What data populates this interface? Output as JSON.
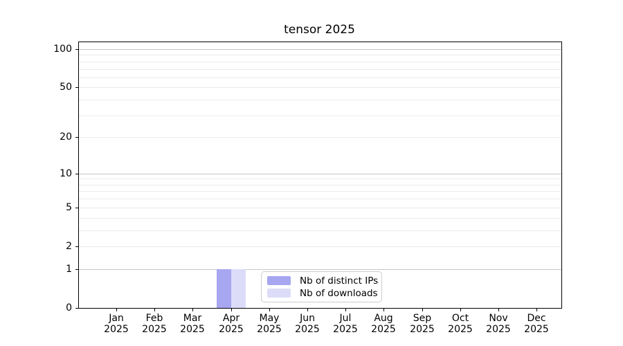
{
  "chart_data": {
    "type": "bar",
    "title": "tensor 2025",
    "categories": [
      {
        "month": "Jan",
        "year": "2025"
      },
      {
        "month": "Feb",
        "year": "2025"
      },
      {
        "month": "Mar",
        "year": "2025"
      },
      {
        "month": "Apr",
        "year": "2025"
      },
      {
        "month": "May",
        "year": "2025"
      },
      {
        "month": "Jun",
        "year": "2025"
      },
      {
        "month": "Jul",
        "year": "2025"
      },
      {
        "month": "Aug",
        "year": "2025"
      },
      {
        "month": "Sep",
        "year": "2025"
      },
      {
        "month": "Oct",
        "year": "2025"
      },
      {
        "month": "Nov",
        "year": "2025"
      },
      {
        "month": "Dec",
        "year": "2025"
      }
    ],
    "series": [
      {
        "name": "Nb of distinct IPs",
        "color": "#a6a6f1",
        "values": [
          0,
          0,
          0,
          1,
          0,
          0,
          0,
          0,
          0,
          0,
          0,
          0
        ]
      },
      {
        "name": "Nb of downloads",
        "color": "#dcdcf9",
        "values": [
          0,
          0,
          0,
          1,
          0,
          0,
          0,
          0,
          0,
          0,
          0,
          0
        ]
      }
    ],
    "y_scale": "log1p",
    "ylim": [
      0,
      113
    ],
    "y_tick_values": [
      0,
      1,
      2,
      5,
      10,
      20,
      50,
      100
    ],
    "grid": {
      "dark_lines": [
        1,
        10,
        100
      ],
      "light_lines": [
        2,
        3,
        4,
        5,
        6,
        7,
        8,
        9,
        20,
        30,
        40,
        50,
        60,
        70,
        80,
        90
      ],
      "dark_color": "#c6c6c6",
      "light_color": "#ebebeb"
    },
    "legend_position": "lower center"
  },
  "colors": {
    "spine": "#000000",
    "background": "#ffffff"
  }
}
